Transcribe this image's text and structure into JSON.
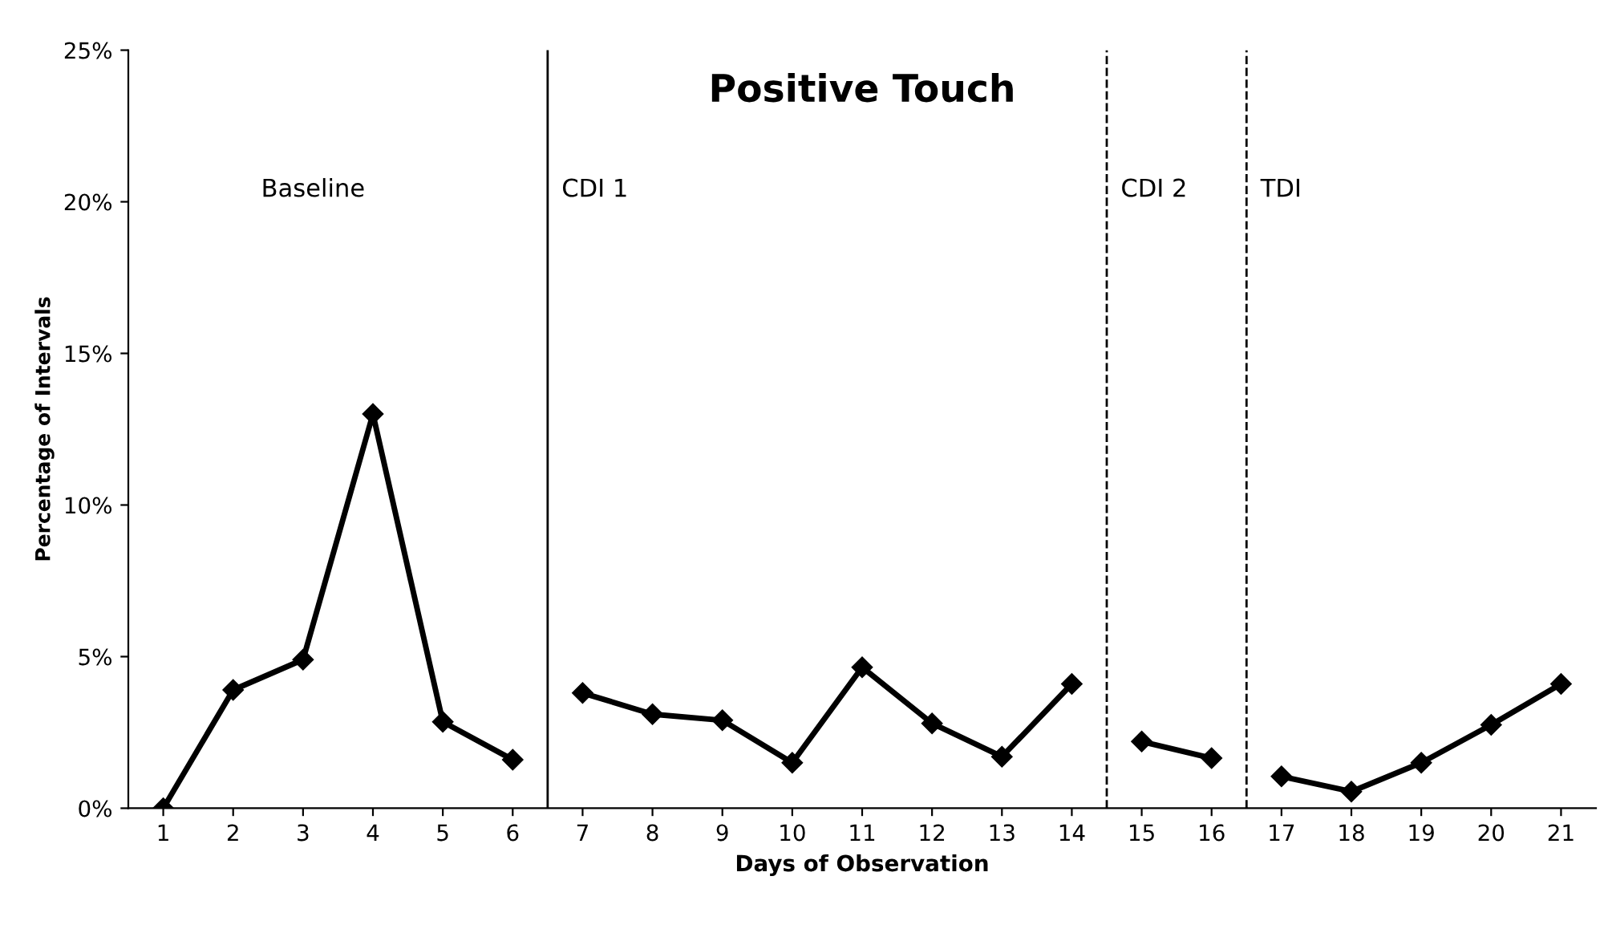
{
  "chart_data": {
    "type": "line",
    "title": "Positive Touch",
    "xlabel": "Days of Observation",
    "ylabel": "Percentage of Intervals",
    "xlim": [
      0.5,
      21.5
    ],
    "xticks": [
      1,
      2,
      3,
      4,
      5,
      6,
      7,
      8,
      9,
      10,
      11,
      12,
      13,
      14,
      15,
      16,
      17,
      18,
      19,
      20,
      21
    ],
    "ylim": [
      0,
      25
    ],
    "yticks": [
      {
        "value": 0,
        "label": "0%"
      },
      {
        "value": 5,
        "label": "5%"
      },
      {
        "value": 10,
        "label": "10%"
      },
      {
        "value": 15,
        "label": "15%"
      },
      {
        "value": 20,
        "label": "20%"
      },
      {
        "value": 25,
        "label": "25%"
      }
    ],
    "series": [
      {
        "color": "#000000",
        "x": [
          1,
          2,
          3,
          4,
          5,
          6
        ],
        "values": [
          0,
          3.9,
          4.9,
          13.0,
          2.85,
          1.6
        ]
      },
      {
        "color": "#000000",
        "x": [
          7,
          8,
          9,
          10,
          11,
          12,
          13,
          14
        ],
        "values": [
          3.8,
          3.1,
          2.9,
          1.5,
          4.65,
          2.8,
          1.7,
          4.1
        ]
      },
      {
        "color": "#000000",
        "x": [
          15,
          16
        ],
        "values": [
          2.2,
          1.65
        ]
      },
      {
        "color": "#000000",
        "x": [
          17,
          18,
          19,
          20,
          21
        ],
        "values": [
          1.05,
          0.55,
          1.5,
          2.75,
          4.1
        ]
      }
    ],
    "ref_lines": [
      {
        "axis": "x",
        "value": 6.5,
        "color": "#000000",
        "line_style": "solid"
      },
      {
        "axis": "x",
        "value": 14.5,
        "color": "#000000",
        "line_style": "dashed"
      },
      {
        "axis": "x",
        "value": 16.5,
        "color": "#000000",
        "line_style": "dashed"
      }
    ],
    "annotations": [
      "Baseline",
      "CDI 1",
      "CDI 2",
      "TDI"
    ],
    "marker": "diamond",
    "line_style": "solid",
    "grid": false,
    "legend": false
  }
}
